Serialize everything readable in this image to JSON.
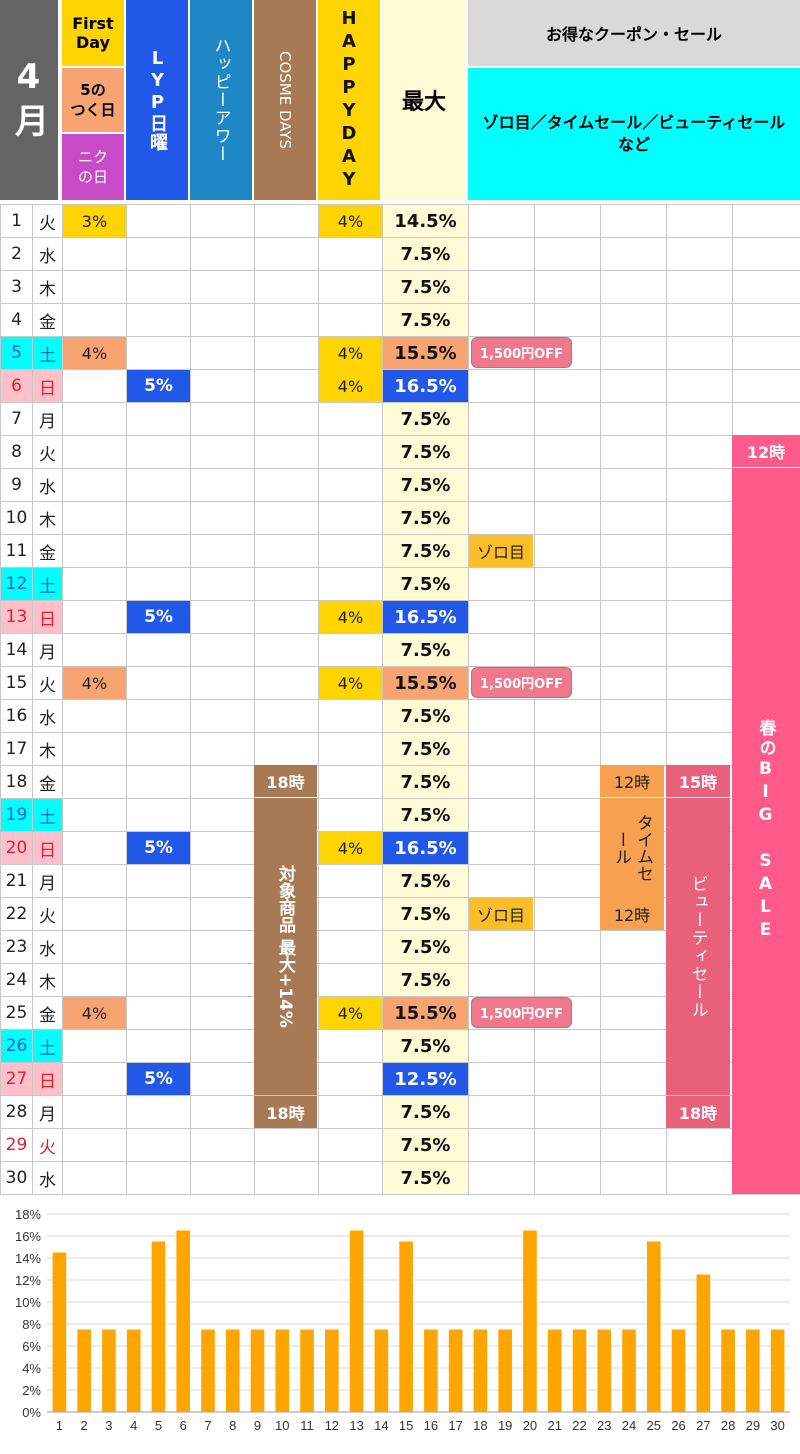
{
  "header": {
    "month": "4月",
    "first_day": "First Day",
    "five_day": "5の\nつく日",
    "niku_day": "ニク\nの日",
    "lyp": "LYP日曜",
    "happy_hour": "ハッピーアワー",
    "cosme": "COSME DAYS",
    "happy_day": "HAPPYDAY",
    "max": "最大",
    "coupon_title": "お得なクーポン・セール",
    "coupon_sub": "ゾロ目／タイムセール／ビューティセール　など"
  },
  "days": [
    {
      "d": "1",
      "w": "火",
      "wtype": "normal",
      "first": "3%",
      "lyp": "",
      "happy": "4%",
      "max": "14.5%",
      "max_color": "#fffbd6",
      "coupon": ""
    },
    {
      "d": "2",
      "w": "水",
      "wtype": "normal",
      "first": "",
      "lyp": "",
      "happy": "",
      "max": "7.5%",
      "max_color": "",
      "coupon": ""
    },
    {
      "d": "3",
      "w": "木",
      "wtype": "normal",
      "first": "",
      "lyp": "",
      "happy": "",
      "max": "7.5%",
      "max_color": "",
      "coupon": ""
    },
    {
      "d": "4",
      "w": "金",
      "wtype": "normal",
      "first": "",
      "lyp": "",
      "happy": "",
      "max": "7.5%",
      "max_color": "",
      "coupon": ""
    },
    {
      "d": "5",
      "w": "土",
      "wtype": "sat",
      "first": "4%",
      "lyp": "",
      "happy": "4%",
      "max": "15.5%",
      "max_color": "#f7a472",
      "coupon": "1,500円OFF"
    },
    {
      "d": "6",
      "w": "日",
      "wtype": "sun",
      "first": "",
      "lyp": "5%",
      "happy": "4%",
      "max": "16.5%",
      "max_color": "#2158e8",
      "coupon": ""
    },
    {
      "d": "7",
      "w": "月",
      "wtype": "normal",
      "first": "",
      "lyp": "",
      "happy": "",
      "max": "7.5%",
      "max_color": "",
      "coupon": ""
    },
    {
      "d": "8",
      "w": "火",
      "wtype": "normal",
      "first": "",
      "lyp": "",
      "happy": "",
      "max": "7.5%",
      "max_color": "",
      "coupon": ""
    },
    {
      "d": "9",
      "w": "水",
      "wtype": "normal",
      "first": "",
      "lyp": "",
      "happy": "",
      "max": "7.5%",
      "max_color": "",
      "coupon": ""
    },
    {
      "d": "10",
      "w": "木",
      "wtype": "normal",
      "first": "",
      "lyp": "",
      "happy": "",
      "max": "7.5%",
      "max_color": "",
      "coupon": ""
    },
    {
      "d": "11",
      "w": "金",
      "wtype": "normal",
      "first": "",
      "lyp": "",
      "happy": "",
      "max": "7.5%",
      "max_color": "",
      "coupon": "ゾロ目"
    },
    {
      "d": "12",
      "w": "土",
      "wtype": "sat",
      "first": "",
      "lyp": "",
      "happy": "",
      "max": "7.5%",
      "max_color": "",
      "coupon": ""
    },
    {
      "d": "13",
      "w": "日",
      "wtype": "sun",
      "first": "",
      "lyp": "5%",
      "happy": "4%",
      "max": "16.5%",
      "max_color": "#2158e8",
      "coupon": ""
    },
    {
      "d": "14",
      "w": "月",
      "wtype": "normal",
      "first": "",
      "lyp": "",
      "happy": "",
      "max": "7.5%",
      "max_color": "",
      "coupon": ""
    },
    {
      "d": "15",
      "w": "火",
      "wtype": "normal",
      "first": "4%",
      "lyp": "",
      "happy": "4%",
      "max": "15.5%",
      "max_color": "#f7a472",
      "coupon": "1,500円OFF"
    },
    {
      "d": "16",
      "w": "水",
      "wtype": "normal",
      "first": "",
      "lyp": "",
      "happy": "",
      "max": "7.5%",
      "max_color": "",
      "coupon": ""
    },
    {
      "d": "17",
      "w": "木",
      "wtype": "normal",
      "first": "",
      "lyp": "",
      "happy": "",
      "max": "7.5%",
      "max_color": "",
      "coupon": ""
    },
    {
      "d": "18",
      "w": "金",
      "wtype": "normal",
      "first": "",
      "lyp": "",
      "happy": "",
      "max": "7.5%",
      "max_color": "",
      "coupon": ""
    },
    {
      "d": "19",
      "w": "土",
      "wtype": "sat",
      "first": "",
      "lyp": "",
      "happy": "",
      "max": "7.5%",
      "max_color": "",
      "coupon": ""
    },
    {
      "d": "20",
      "w": "日",
      "wtype": "sun",
      "first": "",
      "lyp": "5%",
      "happy": "4%",
      "max": "16.5%",
      "max_color": "#2158e8",
      "coupon": ""
    },
    {
      "d": "21",
      "w": "月",
      "wtype": "normal",
      "first": "",
      "lyp": "",
      "happy": "",
      "max": "7.5%",
      "max_color": "",
      "coupon": ""
    },
    {
      "d": "22",
      "w": "火",
      "wtype": "normal",
      "first": "",
      "lyp": "",
      "happy": "",
      "max": "7.5%",
      "max_color": "",
      "coupon": "ゾロ目"
    },
    {
      "d": "23",
      "w": "水",
      "wtype": "normal",
      "first": "",
      "lyp": "",
      "happy": "",
      "max": "7.5%",
      "max_color": "",
      "coupon": ""
    },
    {
      "d": "24",
      "w": "木",
      "wtype": "normal",
      "first": "",
      "lyp": "",
      "happy": "",
      "max": "7.5%",
      "max_color": "",
      "coupon": ""
    },
    {
      "d": "25",
      "w": "金",
      "wtype": "normal",
      "first": "4%",
      "lyp": "",
      "happy": "4%",
      "max": "15.5%",
      "max_color": "#f7a472",
      "coupon": "1,500円OFF"
    },
    {
      "d": "26",
      "w": "土",
      "wtype": "sat",
      "first": "",
      "lyp": "",
      "happy": "",
      "max": "7.5%",
      "max_color": "",
      "coupon": ""
    },
    {
      "d": "27",
      "w": "日",
      "wtype": "sun",
      "first": "",
      "lyp": "5%",
      "happy": "",
      "max": "12.5%",
      "max_color": "#2158e8",
      "coupon": ""
    },
    {
      "d": "28",
      "w": "月",
      "wtype": "normal",
      "first": "",
      "lyp": "",
      "happy": "",
      "max": "7.5%",
      "max_color": "",
      "coupon": ""
    },
    {
      "d": "29",
      "w": "火",
      "wtype": "holiday",
      "first": "",
      "lyp": "",
      "happy": "",
      "max": "7.5%",
      "max_color": "",
      "coupon": ""
    },
    {
      "d": "30",
      "w": "水",
      "wtype": "normal",
      "first": "",
      "lyp": "",
      "happy": "",
      "max": "7.5%",
      "max_color": "",
      "coupon": ""
    }
  ],
  "cosme": {
    "start": "18時",
    "text": "対象商品 最大+14%",
    "end": "18時"
  },
  "time_sale": {
    "start": "12時",
    "text": "タイムセール",
    "end": "12時"
  },
  "beauty_sale": {
    "start": "15時",
    "text": "ビューティセール",
    "end": "18時"
  },
  "big_sale": {
    "start": "12時",
    "text": "春のBIG SALE"
  },
  "colors": {
    "first": "#ffd400",
    "five": "#f7a472",
    "niku": "#c94ac6",
    "lyp": "#2158e8",
    "happy_hour": "#1e88c6",
    "cosme": "#a77a55",
    "happy_day": "#ffd400",
    "max_bg": "#fffbd6",
    "coupon_head": "#d9d9d9",
    "coupon_sub": "#00ffff",
    "month": "#646464",
    "sat": "#00ffff",
    "sun": "#ffc0cb",
    "coupon_pill": "#f0788c",
    "zorome": "#fbbd28",
    "time_sale": "#f7a04f",
    "beauty": "#e8607c",
    "big_sale": "#ff5a8a",
    "bar": "#ffa500"
  },
  "chart_data": {
    "type": "bar",
    "categories": [
      "1",
      "2",
      "3",
      "4",
      "5",
      "6",
      "7",
      "8",
      "9",
      "10",
      "11",
      "12",
      "13",
      "14",
      "15",
      "16",
      "17",
      "18",
      "19",
      "20",
      "21",
      "22",
      "23",
      "24",
      "25",
      "26",
      "27",
      "28",
      "29",
      "30"
    ],
    "values": [
      14.5,
      7.5,
      7.5,
      7.5,
      15.5,
      16.5,
      7.5,
      7.5,
      7.5,
      7.5,
      7.5,
      7.5,
      16.5,
      7.5,
      15.5,
      7.5,
      7.5,
      7.5,
      7.5,
      16.5,
      7.5,
      7.5,
      7.5,
      7.5,
      15.5,
      7.5,
      12.5,
      7.5,
      7.5,
      7.5
    ],
    "yticks": [
      "0%",
      "2%",
      "4%",
      "6%",
      "8%",
      "10%",
      "12%",
      "14%",
      "16%",
      "18%"
    ],
    "ylim": [
      0,
      18
    ],
    "grid": true
  }
}
